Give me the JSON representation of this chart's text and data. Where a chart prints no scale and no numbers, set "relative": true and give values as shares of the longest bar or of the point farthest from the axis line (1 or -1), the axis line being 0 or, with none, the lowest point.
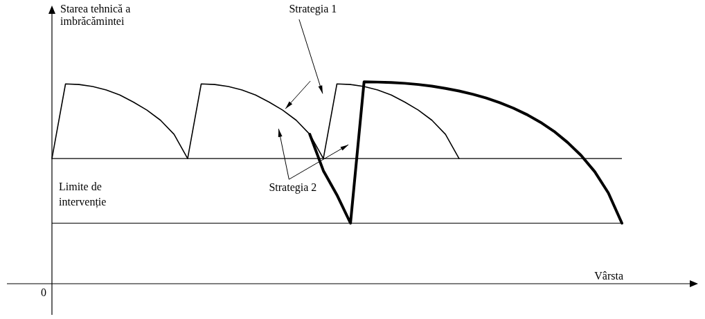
{
  "chart_data": {
    "type": "line",
    "relative": true,
    "ylabel": "Starea tehnică a imbrăcămintei",
    "xlabel": "Vârsta",
    "annotations": [
      "0"
    ],
    "marker": "none",
    "line_style": "solid",
    "categories": [
      null,
      null,
      null,
      null,
      null,
      null,
      null,
      null,
      null,
      null,
      null,
      null,
      null,
      null,
      null,
      null,
      null,
      null,
      null,
      null,
      null,
      null,
      null,
      null,
      null,
      null,
      null,
      null,
      null,
      null,
      null,
      null,
      null,
      null,
      null,
      null,
      null,
      null,
      null,
      null,
      null,
      null,
      null
    ],
    "series": [
      {
        "name": "Strategia 1",
        "color": "#000000",
        "values": [
          0.62,
          0.99,
          0.987,
          0.977,
          0.96,
          0.935,
          0.9,
          0.86,
          0.81,
          0.74,
          0.62,
          0.99,
          0.987,
          0.977,
          0.96,
          0.935,
          0.9,
          0.86,
          0.81,
          0.74,
          0.62,
          0.99,
          0.987,
          0.977,
          0.96,
          0.935,
          0.9,
          0.86,
          0.81,
          0.74,
          0.62,
          null,
          null,
          null,
          null,
          null,
          null,
          null,
          null,
          null,
          null,
          null,
          null
        ]
      },
      {
        "name": "Strategia 2",
        "color": "#000000",
        "values": [
          null,
          null,
          null,
          null,
          null,
          null,
          null,
          null,
          null,
          null,
          null,
          null,
          null,
          null,
          null,
          null,
          null,
          null,
          null,
          0.74,
          0.56,
          0.44,
          0.3,
          1.0,
          0.999,
          0.997,
          0.993,
          0.987,
          0.979,
          0.968,
          0.955,
          0.939,
          0.92,
          0.897,
          0.87,
          0.838,
          0.8,
          0.755,
          0.7,
          0.635,
          0.555,
          0.45,
          0.3
        ]
      }
    ],
    "ref_lines": [
      {
        "axis": "y",
        "value": 0.62,
        "label": "Limite de intervenție",
        "color": "#000000"
      },
      {
        "axis": "y",
        "value": 0.3,
        "color": "#000000"
      }
    ]
  }
}
